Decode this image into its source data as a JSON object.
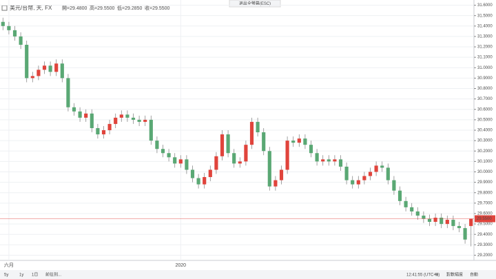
{
  "chart_data": {
    "type": "candlestick",
    "symbol": "美元/台幣, 天, FX",
    "legend_ohlc": [
      "開=29.4800",
      "高=29.5500",
      "低=29.2850",
      "收=29.5500"
    ],
    "exit_button": "退出全螢幕(ESC)",
    "toolbar": {
      "left": [
        "5y",
        "1y",
        "1日",
        "前往到..."
      ],
      "right": [
        "12:41:55 (UTC+8)",
        "%",
        "對數縮度",
        "自動"
      ]
    },
    "up_color": "#e0443c",
    "down_color": "#5aa874",
    "categories": [
      null,
      "六月",
      null,
      null,
      null,
      null,
      null,
      null,
      null,
      null,
      null,
      null,
      null,
      null,
      null,
      null,
      null,
      null,
      null,
      null,
      null,
      null,
      null,
      null,
      null,
      null,
      null,
      null,
      null,
      null,
      "2020",
      null,
      null,
      null,
      null,
      null,
      null,
      null,
      null,
      null,
      null,
      null,
      null,
      null,
      null,
      null,
      null,
      null,
      null,
      null,
      null,
      null,
      null,
      null,
      null,
      null,
      null,
      null,
      null,
      null,
      null,
      null,
      null,
      null,
      null,
      null,
      null,
      null,
      null,
      null,
      null,
      null,
      null,
      null,
      null,
      null,
      null,
      null,
      null,
      null
    ],
    "open": [
      31.44,
      31.4,
      31.36,
      31.3,
      31.22,
      30.9,
      30.92,
      30.98,
      31.02,
      30.96,
      31.04,
      30.9,
      30.62,
      30.58,
      30.52,
      30.56,
      30.42,
      30.36,
      30.4,
      30.46,
      30.52,
      30.55,
      30.52,
      30.5,
      30.48,
      30.5,
      30.3,
      30.22,
      30.18,
      30.14,
      30.08,
      30.12,
      30.02,
      29.94,
      29.88,
      29.95,
      30.02,
      30.15,
      30.36,
      30.18,
      30.08,
      30.1,
      30.26,
      30.48,
      30.38,
      30.2,
      29.86,
      29.92,
      30.02,
      30.3,
      30.28,
      30.32,
      30.26,
      30.18,
      30.1,
      30.12,
      30.1,
      30.12,
      30.05,
      29.92,
      29.88,
      29.92,
      29.96,
      30.0,
      30.06,
      30.04,
      29.92,
      29.82,
      29.72,
      29.66,
      29.62,
      29.58,
      29.55,
      29.52,
      29.56,
      29.5,
      29.54,
      29.48,
      29.46,
      29.48
    ],
    "high": [
      31.48,
      31.44,
      31.4,
      31.34,
      31.26,
      30.96,
      31.02,
      31.06,
      31.06,
      31.08,
      31.08,
      30.94,
      30.66,
      30.62,
      30.6,
      30.6,
      30.46,
      30.44,
      30.5,
      30.56,
      30.59,
      30.59,
      30.56,
      30.54,
      30.54,
      30.54,
      30.34,
      30.26,
      30.22,
      30.18,
      30.16,
      30.16,
      30.06,
      29.98,
      29.99,
      30.06,
      30.19,
      30.4,
      30.4,
      30.22,
      30.14,
      30.3,
      30.52,
      30.52,
      30.42,
      30.24,
      29.96,
      30.06,
      30.34,
      30.34,
      30.36,
      30.36,
      30.3,
      30.22,
      30.16,
      30.16,
      30.16,
      30.16,
      30.09,
      29.96,
      29.96,
      30.0,
      30.04,
      30.1,
      30.1,
      30.08,
      29.96,
      29.86,
      29.76,
      29.7,
      29.66,
      29.62,
      29.59,
      29.6,
      29.6,
      29.58,
      29.58,
      29.52,
      29.5,
      29.55
    ],
    "low": [
      31.36,
      31.32,
      31.26,
      31.18,
      30.86,
      30.86,
      30.88,
      30.94,
      30.92,
      30.92,
      30.86,
      30.58,
      30.54,
      30.48,
      30.48,
      30.38,
      30.32,
      30.32,
      30.36,
      30.42,
      30.48,
      30.48,
      30.46,
      30.44,
      30.44,
      30.26,
      30.18,
      30.14,
      30.1,
      30.04,
      30.04,
      29.98,
      29.9,
      29.84,
      29.84,
      29.91,
      29.98,
      30.11,
      30.14,
      30.04,
      30.04,
      30.06,
      30.22,
      30.34,
      30.16,
      29.82,
      29.82,
      29.88,
      29.98,
      30.24,
      30.24,
      30.22,
      30.14,
      30.06,
      30.06,
      30.06,
      30.06,
      30.01,
      29.88,
      29.84,
      29.84,
      29.88,
      29.92,
      29.96,
      30.0,
      29.88,
      29.78,
      29.68,
      29.62,
      29.58,
      29.54,
      29.51,
      29.48,
      29.48,
      29.46,
      29.46,
      29.44,
      29.42,
      29.31,
      29.285
    ],
    "close": [
      31.4,
      31.36,
      31.3,
      31.22,
      30.9,
      30.92,
      30.98,
      31.02,
      30.96,
      31.04,
      30.9,
      30.62,
      30.58,
      30.52,
      30.56,
      30.42,
      30.36,
      30.4,
      30.46,
      30.52,
      30.55,
      30.52,
      30.5,
      30.48,
      30.5,
      30.3,
      30.22,
      30.18,
      30.14,
      30.08,
      30.12,
      30.02,
      29.94,
      29.88,
      29.95,
      30.02,
      30.15,
      30.36,
      30.18,
      30.08,
      30.1,
      30.26,
      30.48,
      30.38,
      30.2,
      29.86,
      29.92,
      30.02,
      30.3,
      30.28,
      30.32,
      30.26,
      30.18,
      30.1,
      30.12,
      30.1,
      30.12,
      30.05,
      29.92,
      29.88,
      29.92,
      29.96,
      30.0,
      30.06,
      30.04,
      29.92,
      29.82,
      29.72,
      29.66,
      29.62,
      29.58,
      29.55,
      29.52,
      29.56,
      29.5,
      29.54,
      29.48,
      29.46,
      29.35,
      29.55
    ],
    "last_price": {
      "value": 29.55,
      "label": "29.5500"
    },
    "ylim": [
      29.15,
      31.65
    ],
    "yticks": [
      {
        "value": 29.2,
        "label": "29.2000"
      },
      {
        "value": 29.3,
        "label": "29.3000"
      },
      {
        "value": 29.4,
        "label": "29.4000"
      },
      {
        "value": 29.5,
        "label": "29.5000"
      },
      {
        "value": 29.6,
        "label": "29.6000"
      },
      {
        "value": 29.7,
        "label": "29.7000"
      },
      {
        "value": 29.8,
        "label": "29.8000"
      },
      {
        "value": 29.9,
        "label": "29.9000"
      },
      {
        "value": 30.0,
        "label": "30.0000"
      },
      {
        "value": 30.1,
        "label": "30.1000"
      },
      {
        "value": 30.2,
        "label": "30.2000"
      },
      {
        "value": 30.3,
        "label": "30.3000"
      },
      {
        "value": 30.4,
        "label": "30.4000"
      },
      {
        "value": 30.5,
        "label": "30.5000"
      },
      {
        "value": 30.6,
        "label": "30.6000"
      },
      {
        "value": 30.7,
        "label": "30.7000"
      },
      {
        "value": 30.8,
        "label": "30.8000"
      },
      {
        "value": 30.9,
        "label": "30.9000"
      },
      {
        "value": 31.0,
        "label": "31.0000"
      },
      {
        "value": 31.1,
        "label": "31.1000"
      },
      {
        "value": 31.2,
        "label": "31.2000"
      },
      {
        "value": 31.3,
        "label": "31.3000"
      },
      {
        "value": 31.4,
        "label": "31.4000"
      },
      {
        "value": 31.5,
        "label": "31.5000"
      },
      {
        "value": 31.6,
        "label": "31.6000"
      }
    ],
    "grid": true
  }
}
